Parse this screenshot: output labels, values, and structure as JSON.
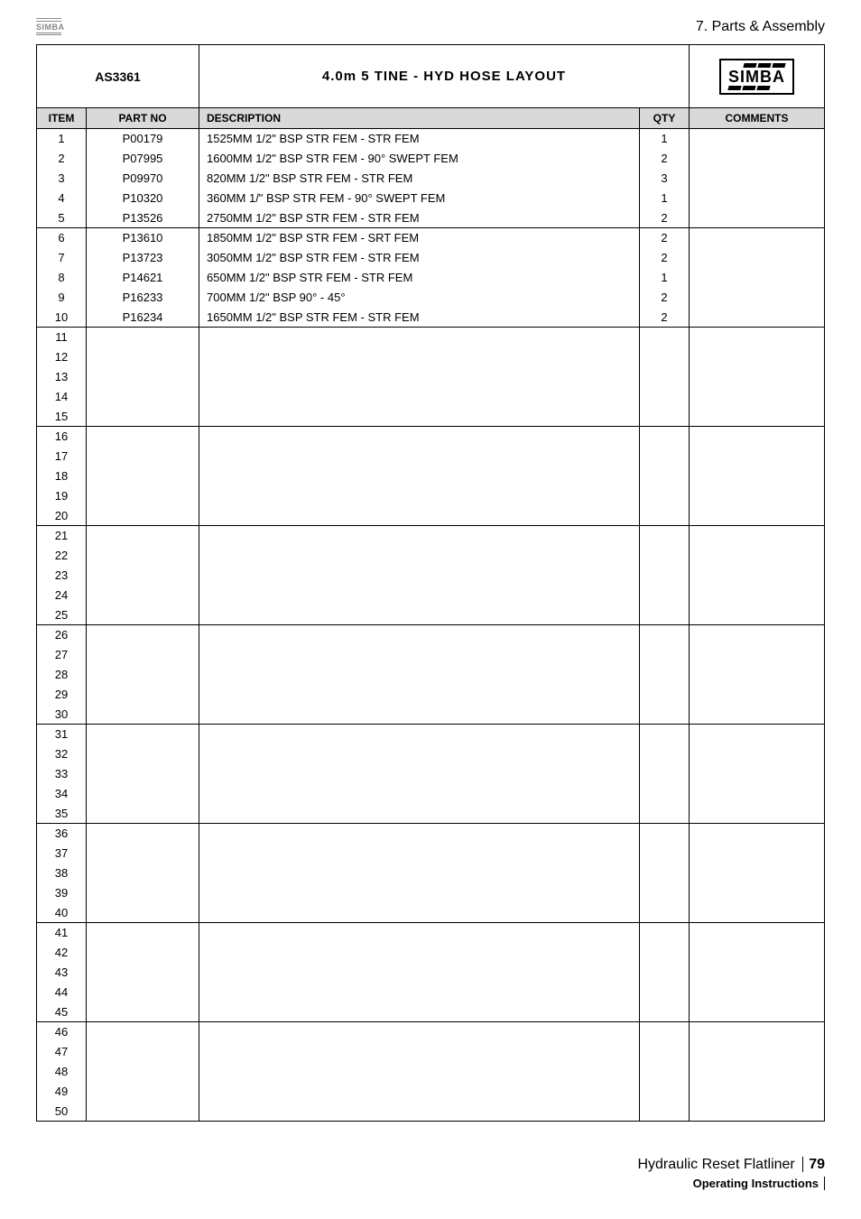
{
  "header": {
    "small_logo_text": "SIMBA",
    "section": "7. Parts & Assembly"
  },
  "title_row": {
    "left": "AS3361",
    "center": "4.0m 5 TINE - HYD HOSE LAYOUT",
    "logo": "SIMBA"
  },
  "columns": {
    "item": "ITEM",
    "partno": "PART NO",
    "description": "DESCRIPTION",
    "qty": "QTY",
    "comments": "COMMENTS"
  },
  "rows": [
    {
      "item": "1",
      "partno": "P00179",
      "desc": "1525MM 1/2\" BSP STR FEM - STR FEM",
      "qty": "1",
      "comments": ""
    },
    {
      "item": "2",
      "partno": "P07995",
      "desc": "1600MM 1/2\" BSP STR FEM -  90° SWEPT FEM",
      "qty": "2",
      "comments": ""
    },
    {
      "item": "3",
      "partno": "P09970",
      "desc": "820MM 1/2\" BSP STR FEM - STR FEM",
      "qty": "3",
      "comments": ""
    },
    {
      "item": "4",
      "partno": "P10320",
      "desc": "360MM 1/\" BSP STR FEM - 90° SWEPT FEM",
      "qty": "1",
      "comments": ""
    },
    {
      "item": "5",
      "partno": "P13526",
      "desc": "2750MM 1/2\" BSP STR FEM - STR FEM",
      "qty": "2",
      "comments": ""
    },
    {
      "item": "6",
      "partno": "P13610",
      "desc": "1850MM 1/2\" BSP STR FEM - SRT FEM",
      "qty": "2",
      "comments": ""
    },
    {
      "item": "7",
      "partno": "P13723",
      "desc": "3050MM 1/2\" BSP STR FEM - STR FEM",
      "qty": "2",
      "comments": ""
    },
    {
      "item": "8",
      "partno": "P14621",
      "desc": "650MM 1/2\" BSP STR FEM - STR FEM",
      "qty": "1",
      "comments": ""
    },
    {
      "item": "9",
      "partno": "P16233",
      "desc": "700MM 1/2\" BSP 90° - 45°",
      "qty": "2",
      "comments": ""
    },
    {
      "item": "10",
      "partno": "P16234",
      "desc": "1650MM 1/2\" BSP STR FEM - STR FEM",
      "qty": "2",
      "comments": ""
    },
    {
      "item": "11",
      "partno": "",
      "desc": "",
      "qty": "",
      "comments": ""
    },
    {
      "item": "12",
      "partno": "",
      "desc": "",
      "qty": "",
      "comments": ""
    },
    {
      "item": "13",
      "partno": "",
      "desc": "",
      "qty": "",
      "comments": ""
    },
    {
      "item": "14",
      "partno": "",
      "desc": "",
      "qty": "",
      "comments": ""
    },
    {
      "item": "15",
      "partno": "",
      "desc": "",
      "qty": "",
      "comments": ""
    },
    {
      "item": "16",
      "partno": "",
      "desc": "",
      "qty": "",
      "comments": ""
    },
    {
      "item": "17",
      "partno": "",
      "desc": "",
      "qty": "",
      "comments": ""
    },
    {
      "item": "18",
      "partno": "",
      "desc": "",
      "qty": "",
      "comments": ""
    },
    {
      "item": "19",
      "partno": "",
      "desc": "",
      "qty": "",
      "comments": ""
    },
    {
      "item": "20",
      "partno": "",
      "desc": "",
      "qty": "",
      "comments": ""
    },
    {
      "item": "21",
      "partno": "",
      "desc": "",
      "qty": "",
      "comments": ""
    },
    {
      "item": "22",
      "partno": "",
      "desc": "",
      "qty": "",
      "comments": ""
    },
    {
      "item": "23",
      "partno": "",
      "desc": "",
      "qty": "",
      "comments": ""
    },
    {
      "item": "24",
      "partno": "",
      "desc": "",
      "qty": "",
      "comments": ""
    },
    {
      "item": "25",
      "partno": "",
      "desc": "",
      "qty": "",
      "comments": ""
    },
    {
      "item": "26",
      "partno": "",
      "desc": "",
      "qty": "",
      "comments": ""
    },
    {
      "item": "27",
      "partno": "",
      "desc": "",
      "qty": "",
      "comments": ""
    },
    {
      "item": "28",
      "partno": "",
      "desc": "",
      "qty": "",
      "comments": ""
    },
    {
      "item": "29",
      "partno": "",
      "desc": "",
      "qty": "",
      "comments": ""
    },
    {
      "item": "30",
      "partno": "",
      "desc": "",
      "qty": "",
      "comments": ""
    },
    {
      "item": "31",
      "partno": "",
      "desc": "",
      "qty": "",
      "comments": ""
    },
    {
      "item": "32",
      "partno": "",
      "desc": "",
      "qty": "",
      "comments": ""
    },
    {
      "item": "33",
      "partno": "",
      "desc": "",
      "qty": "",
      "comments": ""
    },
    {
      "item": "34",
      "partno": "",
      "desc": "",
      "qty": "",
      "comments": ""
    },
    {
      "item": "35",
      "partno": "",
      "desc": "",
      "qty": "",
      "comments": ""
    },
    {
      "item": "36",
      "partno": "",
      "desc": "",
      "qty": "",
      "comments": ""
    },
    {
      "item": "37",
      "partno": "",
      "desc": "",
      "qty": "",
      "comments": ""
    },
    {
      "item": "38",
      "partno": "",
      "desc": "",
      "qty": "",
      "comments": ""
    },
    {
      "item": "39",
      "partno": "",
      "desc": "",
      "qty": "",
      "comments": ""
    },
    {
      "item": "40",
      "partno": "",
      "desc": "",
      "qty": "",
      "comments": ""
    },
    {
      "item": "41",
      "partno": "",
      "desc": "",
      "qty": "",
      "comments": ""
    },
    {
      "item": "42",
      "partno": "",
      "desc": "",
      "qty": "",
      "comments": ""
    },
    {
      "item": "43",
      "partno": "",
      "desc": "",
      "qty": "",
      "comments": ""
    },
    {
      "item": "44",
      "partno": "",
      "desc": "",
      "qty": "",
      "comments": ""
    },
    {
      "item": "45",
      "partno": "",
      "desc": "",
      "qty": "",
      "comments": ""
    },
    {
      "item": "46",
      "partno": "",
      "desc": "",
      "qty": "",
      "comments": ""
    },
    {
      "item": "47",
      "partno": "",
      "desc": "",
      "qty": "",
      "comments": ""
    },
    {
      "item": "48",
      "partno": "",
      "desc": "",
      "qty": "",
      "comments": ""
    },
    {
      "item": "49",
      "partno": "",
      "desc": "",
      "qty": "",
      "comments": ""
    },
    {
      "item": "50",
      "partno": "",
      "desc": "",
      "qty": "",
      "comments": ""
    }
  ],
  "group_ends": [
    5,
    10,
    15,
    20,
    25,
    30,
    35,
    40,
    45,
    50
  ],
  "footer": {
    "title": "Hydraulic Reset Flatliner",
    "page": "79",
    "sub": "Operating Instructions"
  }
}
